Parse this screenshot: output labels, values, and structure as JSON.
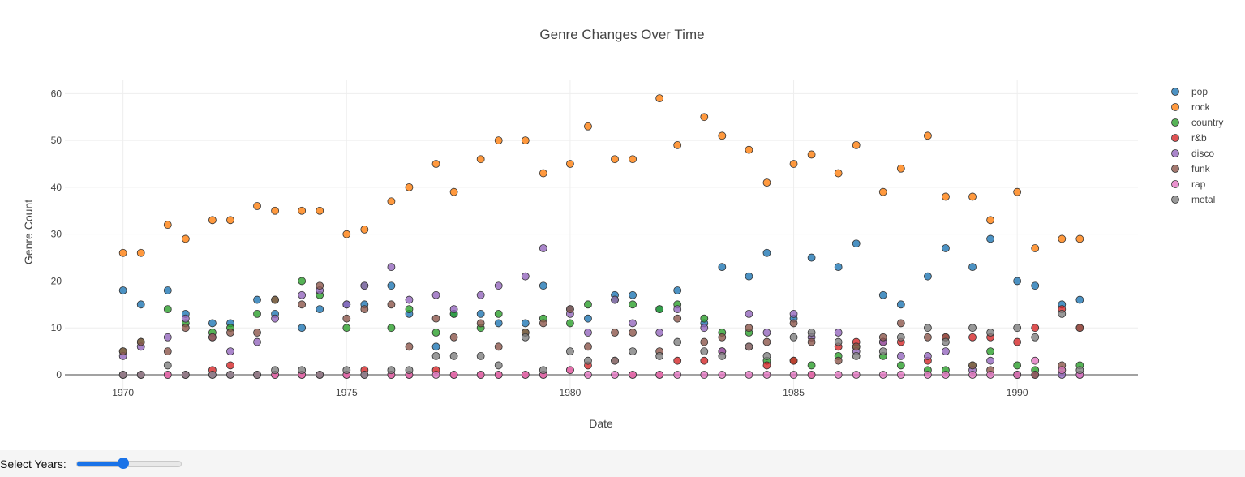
{
  "chart_data": {
    "type": "scatter",
    "title": "Genre Changes Over Time",
    "xlabel": "Date",
    "ylabel": "Genre Count",
    "xlim": [
      1968.7,
      1992.7
    ],
    "ylim": [
      -4.5,
      63
    ],
    "x_ticks": [
      1970,
      1975,
      1980,
      1985,
      1990
    ],
    "y_ticks": [
      0,
      10,
      20,
      30,
      40,
      50,
      60
    ],
    "grid": true,
    "legend_position": "top-right",
    "x": [
      1970.0,
      1970.4,
      1971.0,
      1971.4,
      1972.0,
      1972.4,
      1973.0,
      1973.4,
      1974.0,
      1974.4,
      1975.0,
      1975.4,
      1976.0,
      1976.4,
      1977.0,
      1977.4,
      1978.0,
      1978.4,
      1979.0,
      1979.4,
      1980.0,
      1980.4,
      1981.0,
      1981.4,
      1982.0,
      1982.4,
      1983.0,
      1983.4,
      1984.0,
      1984.4,
      1985.0,
      1985.4,
      1986.0,
      1986.4,
      1987.0,
      1987.4,
      1988.0,
      1988.4,
      1989.0,
      1989.4,
      1990.0,
      1990.4,
      1991.0,
      1991.4
    ],
    "series": [
      {
        "name": "pop",
        "color": "#1f77b4",
        "values": [
          18,
          15,
          18,
          13,
          11,
          11,
          16,
          13,
          10,
          14,
          15,
          15,
          19,
          13,
          6,
          13,
          13,
          11,
          11,
          19,
          14,
          12,
          17,
          17,
          14,
          18,
          11,
          23,
          21,
          26,
          12,
          25,
          23,
          28,
          17,
          15,
          21,
          27,
          23,
          29,
          20,
          19,
          15,
          16
        ]
      },
      {
        "name": "rock",
        "color": "#ff7f0e",
        "values": [
          26,
          26,
          32,
          29,
          33,
          33,
          36,
          35,
          35,
          35,
          30,
          31,
          37,
          40,
          45,
          39,
          46,
          50,
          50,
          43,
          45,
          53,
          46,
          46,
          59,
          49,
          55,
          51,
          48,
          41,
          45,
          47,
          43,
          49,
          39,
          44,
          51,
          38,
          38,
          33,
          39,
          27,
          29,
          29
        ]
      },
      {
        "name": "country",
        "color": "#2ca02c",
        "values": [
          5,
          7,
          14,
          11,
          9,
          10,
          13,
          16,
          20,
          17,
          10,
          19,
          10,
          14,
          9,
          13,
          10,
          13,
          9,
          12,
          11,
          15,
          16,
          15,
          14,
          15,
          12,
          9,
          9,
          3,
          3,
          2,
          4,
          6,
          4,
          2,
          1,
          1,
          2,
          5,
          2,
          1,
          1,
          2
        ]
      },
      {
        "name": "r&b",
        "color": "#d62728",
        "values": [
          0,
          0,
          0,
          0,
          1,
          2,
          0,
          0,
          0,
          0,
          0,
          1,
          0,
          0,
          1,
          0,
          0,
          0,
          0,
          0,
          1,
          2,
          3,
          0,
          0,
          3,
          3,
          5,
          6,
          2,
          3,
          0,
          6,
          7,
          7,
          7,
          3,
          8,
          8,
          8,
          7,
          10,
          14,
          10
        ]
      },
      {
        "name": "disco",
        "color": "#9467bd",
        "values": [
          4,
          6,
          8,
          12,
          8,
          5,
          7,
          12,
          17,
          18,
          15,
          19,
          23,
          16,
          17,
          14,
          17,
          19,
          21,
          27,
          13,
          9,
          16,
          11,
          9,
          14,
          10,
          5,
          13,
          9,
          13,
          8,
          9,
          5,
          7,
          4,
          4,
          5,
          1,
          3,
          0,
          0,
          0,
          0
        ]
      },
      {
        "name": "funk",
        "color": "#8c564b",
        "values": [
          5,
          7,
          5,
          10,
          8,
          9,
          9,
          16,
          15,
          19,
          12,
          14,
          15,
          6,
          12,
          8,
          11,
          6,
          9,
          11,
          14,
          6,
          9,
          9,
          5,
          12,
          7,
          8,
          10,
          7,
          11,
          7,
          3,
          6,
          8,
          11,
          8,
          8,
          2,
          1,
          0,
          0,
          2,
          10
        ]
      },
      {
        "name": "rap",
        "color": "#e377c2",
        "values": [
          0,
          0,
          0,
          0,
          0,
          0,
          0,
          0,
          0,
          0,
          0,
          0,
          0,
          0,
          0,
          0,
          0,
          0,
          0,
          0,
          1,
          0,
          0,
          0,
          0,
          0,
          0,
          0,
          0,
          0,
          0,
          0,
          0,
          0,
          0,
          0,
          0,
          0,
          0,
          0,
          0,
          3,
          1,
          0
        ]
      },
      {
        "name": "metal",
        "color": "#7f7f7f",
        "values": [
          0,
          0,
          2,
          0,
          0,
          0,
          0,
          1,
          1,
          0,
          1,
          0,
          1,
          1,
          4,
          4,
          4,
          2,
          8,
          1,
          5,
          3,
          3,
          5,
          4,
          7,
          5,
          4,
          6,
          4,
          8,
          9,
          7,
          4,
          5,
          8,
          10,
          7,
          10,
          9,
          10,
          8,
          13,
          1
        ]
      }
    ]
  },
  "controls": {
    "slider_label": "Select Years:",
    "slider_value": 0.45
  }
}
